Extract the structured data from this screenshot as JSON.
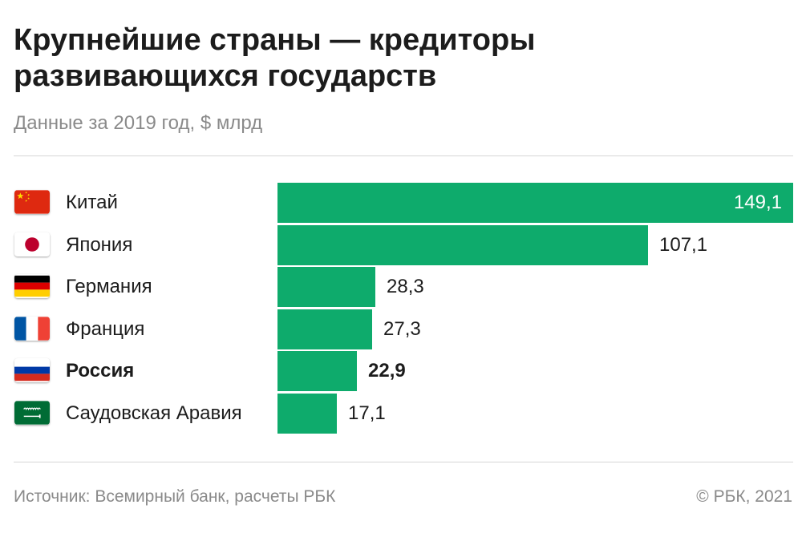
{
  "header": {
    "title": "Крупнейшие страны — кредиторы развивающихся государств",
    "subtitle": "Данные за 2019 год, $ млрд"
  },
  "footer": {
    "source": "Источник: Всемирный банк, расчеты РБК",
    "copyright": "© РБК, 2021"
  },
  "chart_data": {
    "type": "bar",
    "orientation": "horizontal",
    "title": "Крупнейшие страны — кредиторы развивающихся государств",
    "subtitle": "Данные за 2019 год, $ млрд",
    "categories": [
      "Китай",
      "Япония",
      "Германия",
      "Франция",
      "Россия",
      "Саудовская Аравия"
    ],
    "values": [
      149.1,
      107.1,
      28.3,
      27.3,
      22.9,
      17.1
    ],
    "value_labels": [
      "149,1",
      "107,1",
      "28,3",
      "27,3",
      "22,9",
      "17,1"
    ],
    "flags": [
      "china-flag-icon",
      "japan-flag-icon",
      "germany-flag-icon",
      "france-flag-icon",
      "russia-flag-icon",
      "saudi-arabia-flag-icon"
    ],
    "highlighted": "Россия",
    "bar_color": "#0eab6c",
    "xlim": [
      0,
      149.1
    ],
    "grid": false,
    "legend": "none"
  }
}
